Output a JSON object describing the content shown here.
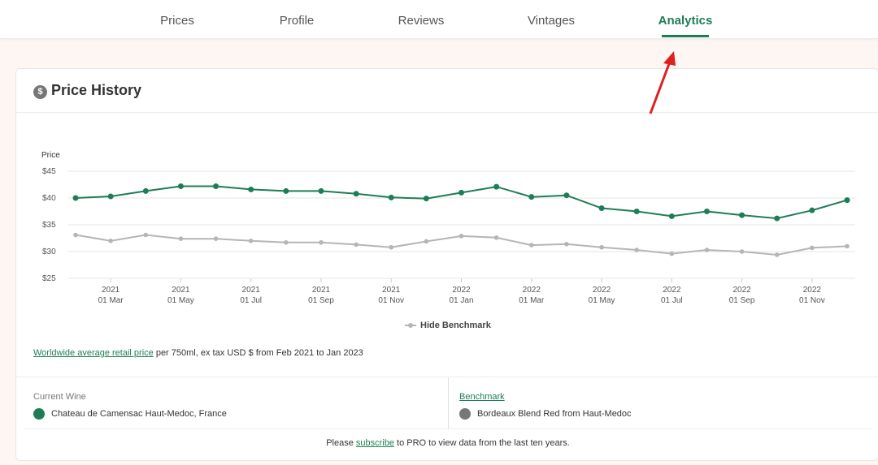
{
  "tabs": [
    {
      "label": "Prices",
      "active": false
    },
    {
      "label": "Profile",
      "active": false
    },
    {
      "label": "Reviews",
      "active": false
    },
    {
      "label": "Vintages",
      "active": false
    },
    {
      "label": "Analytics",
      "active": true
    }
  ],
  "card": {
    "title": "Price History",
    "icon": "dollar-icon"
  },
  "legend": {
    "benchmark_toggle_label": "Hide Benchmark"
  },
  "footnote": {
    "link_text": "Worldwide average retail price",
    "rest_text": " per 750ml, ex tax USD $ from Feb 2021 to Jan 2023"
  },
  "current_wine": {
    "label": "Current Wine",
    "value": "Chateau de Camensac Haut-Medoc, France",
    "color": "#1e7d55"
  },
  "benchmark": {
    "label": "Benchmark",
    "value": "Bordeaux Blend Red from Haut-Medoc",
    "color": "#777777"
  },
  "subscribe": {
    "before": "Please ",
    "link": "subscribe",
    "after": " to PRO to view data from the last ten years."
  },
  "colors": {
    "accent": "#1e7d55",
    "benchmark": "#b5b5b5",
    "annotation_arrow": "#e02020"
  },
  "chart_data": {
    "type": "line",
    "ylabel": "Price",
    "ylim": [
      25,
      45
    ],
    "yticks": [
      "$25",
      "$30",
      "$35",
      "$40",
      "$45"
    ],
    "xticks": [
      {
        "year": "2021",
        "label": "01 Mar"
      },
      {
        "year": "2021",
        "label": "01 May"
      },
      {
        "year": "2021",
        "label": "01 Jul"
      },
      {
        "year": "2021",
        "label": "01 Sep"
      },
      {
        "year": "2021",
        "label": "01 Nov"
      },
      {
        "year": "2022",
        "label": "01 Jan"
      },
      {
        "year": "2022",
        "label": "01 Mar"
      },
      {
        "year": "2022",
        "label": "01 May"
      },
      {
        "year": "2022",
        "label": "01 Jul"
      },
      {
        "year": "2022",
        "label": "01 Sep"
      },
      {
        "year": "2022",
        "label": "01 Nov"
      }
    ],
    "x": [
      "2021-02",
      "2021-03",
      "2021-04",
      "2021-05",
      "2021-06",
      "2021-07",
      "2021-08",
      "2021-09",
      "2021-10",
      "2021-11",
      "2021-12",
      "2022-01",
      "2022-02",
      "2022-03",
      "2022-04",
      "2022-05",
      "2022-06",
      "2022-07",
      "2022-08",
      "2022-09",
      "2022-10",
      "2022-11",
      "2022-12"
    ],
    "series": [
      {
        "values": [
          40.0,
          40.3,
          41.3,
          42.2,
          42.2,
          41.6,
          41.3,
          41.3,
          40.8,
          40.1,
          39.9,
          41.0,
          42.1,
          40.2,
          40.5,
          38.1,
          37.5,
          36.6,
          37.5,
          36.8,
          36.2,
          37.7,
          39.6
        ],
        "color": "#1e7d55"
      },
      {
        "values": [
          33.1,
          32.0,
          33.1,
          32.4,
          32.4,
          32.0,
          31.7,
          31.7,
          31.3,
          30.8,
          31.9,
          32.9,
          32.6,
          31.2,
          31.4,
          30.8,
          30.3,
          29.6,
          30.3,
          30.0,
          29.4,
          30.7,
          31.0
        ],
        "color": "#b5b5b5"
      }
    ],
    "grid": true,
    "legend": "bottom-center"
  }
}
